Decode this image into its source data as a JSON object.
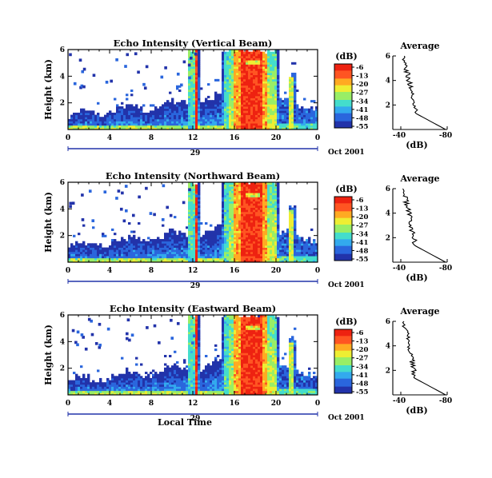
{
  "chart_data": [
    {
      "type": "heatmap",
      "title": "Echo Intensity (Vertical Beam)",
      "ylabel": "Height (km)",
      "xlim": [
        0,
        24
      ],
      "ylim": [
        0,
        6
      ],
      "x_ticks": [
        "0",
        "4",
        "8",
        "12",
        "16",
        "20",
        "0"
      ],
      "y_ticks": [
        "2",
        "4",
        "6"
      ],
      "date_label": "29",
      "month_label": "Oct 2001",
      "colorbar": {
        "unit": "(dB)",
        "ticks": [
          "-6",
          "-13",
          "-20",
          "-27",
          "-34",
          "-41",
          "-48",
          "-55"
        ]
      },
      "average": {
        "title": "Average",
        "xlabel": "(dB)",
        "x_ticks": [
          "-40",
          "-80"
        ],
        "y_ticks": [
          "2",
          "4",
          "6"
        ]
      }
    },
    {
      "type": "heatmap",
      "title": "Echo Intensity (Northward Beam)",
      "ylabel": "Height (km)",
      "xlim": [
        0,
        24
      ],
      "ylim": [
        0,
        6
      ],
      "x_ticks": [
        "0",
        "4",
        "8",
        "12",
        "16",
        "20",
        "0"
      ],
      "y_ticks": [
        "2",
        "4",
        "6"
      ],
      "date_label": "29",
      "month_label": "Oct 2001",
      "colorbar": {
        "unit": "(dB)",
        "ticks": [
          "-6",
          "-13",
          "-20",
          "-27",
          "-34",
          "-41",
          "-48",
          "-55"
        ]
      },
      "average": {
        "title": "Average",
        "xlabel": "(dB)",
        "x_ticks": [
          "-40",
          "-80"
        ],
        "y_ticks": [
          "2",
          "4",
          "6"
        ]
      }
    },
    {
      "type": "heatmap",
      "title": "Echo Intensity (Eastward Beam)",
      "ylabel": "Height (km)",
      "xlim": [
        0,
        24
      ],
      "ylim": [
        0,
        6
      ],
      "x_ticks": [
        "0",
        "4",
        "8",
        "12",
        "16",
        "20",
        "0"
      ],
      "y_ticks": [
        "2",
        "4",
        "6"
      ],
      "date_label": "29",
      "month_label": "Oct 2001",
      "colorbar": {
        "unit": "(dB)",
        "ticks": [
          "-6",
          "-13",
          "-20",
          "-27",
          "-34",
          "-41",
          "-48",
          "-55"
        ]
      },
      "average": {
        "title": "Average",
        "xlabel": "(dB)",
        "x_ticks": [
          "-40",
          "-80"
        ],
        "y_ticks": [
          "2",
          "4",
          "6"
        ]
      },
      "xlabel": "Local Time"
    }
  ],
  "colors": {
    "jet": [
      "#2233aa",
      "#2a66dd",
      "#33aaee",
      "#44ddcc",
      "#99ee66",
      "#eeee33",
      "#ffaa22",
      "#ff5522",
      "#ee2211"
    ],
    "date_axis": "#2233aa"
  }
}
